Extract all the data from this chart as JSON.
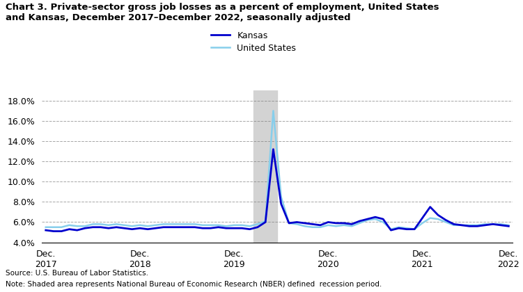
{
  "title": "Chart 3. Private-sector gross job losses as a percent of employment, United States\nand Kansas, December 2017–December 2022, seasonally adjusted",
  "source_text": "Source: U.S. Bureau of Labor Statistics.",
  "note_text": "Note: Shaded area represents National Bureau of Economic Research (NBER) defined  recession period.",
  "legend_kansas": "Kansas",
  "legend_us": "United States",
  "kansas_color": "#0000CD",
  "us_color": "#87CEEB",
  "recession_color": "#D3D3D3",
  "recession_start": 26.5,
  "recession_end": 29.5,
  "ylim": [
    4.0,
    19.0
  ],
  "yticks": [
    4.0,
    6.0,
    8.0,
    10.0,
    12.0,
    14.0,
    16.0,
    18.0
  ],
  "kansas_data": [
    5.2,
    5.1,
    5.1,
    5.3,
    5.2,
    5.4,
    5.5,
    5.5,
    5.4,
    5.5,
    5.4,
    5.3,
    5.4,
    5.3,
    5.4,
    5.5,
    5.5,
    5.5,
    5.5,
    5.5,
    5.4,
    5.4,
    5.5,
    5.4,
    5.4,
    5.4,
    5.3,
    5.5,
    6.0,
    13.2,
    7.8,
    5.9,
    6.0,
    5.9,
    5.8,
    5.7,
    6.0,
    5.9,
    5.9,
    5.8,
    6.1,
    6.3,
    6.5,
    6.3,
    5.2,
    5.4,
    5.3,
    5.3,
    6.4,
    7.5,
    6.7,
    6.2,
    5.8,
    5.7,
    5.6,
    5.6,
    5.7,
    5.8,
    5.7,
    5.6
  ],
  "us_data": [
    5.5,
    5.5,
    5.5,
    5.7,
    5.6,
    5.6,
    5.8,
    5.8,
    5.7,
    5.8,
    5.7,
    5.6,
    5.7,
    5.6,
    5.7,
    5.8,
    5.8,
    5.8,
    5.8,
    5.8,
    5.7,
    5.7,
    5.7,
    5.6,
    5.7,
    5.7,
    5.6,
    5.8,
    6.1,
    17.0,
    8.5,
    5.9,
    5.8,
    5.6,
    5.5,
    5.5,
    5.7,
    5.6,
    5.7,
    5.6,
    5.9,
    6.2,
    6.3,
    6.0,
    5.3,
    5.5,
    5.4,
    5.3,
    5.9,
    6.4,
    6.3,
    6.0,
    5.7,
    5.7,
    5.7,
    5.7,
    5.8,
    5.8,
    5.8,
    5.7
  ],
  "num_points": 60,
  "xtick_positions": [
    0,
    12,
    24,
    36,
    48,
    59
  ],
  "xtick_labels": [
    "Dec.\n2017",
    "Dec.\n2018",
    "Dec.\n2019",
    "Dec.\n2020",
    "Dec.\n2021",
    "Dec.\n2022"
  ]
}
